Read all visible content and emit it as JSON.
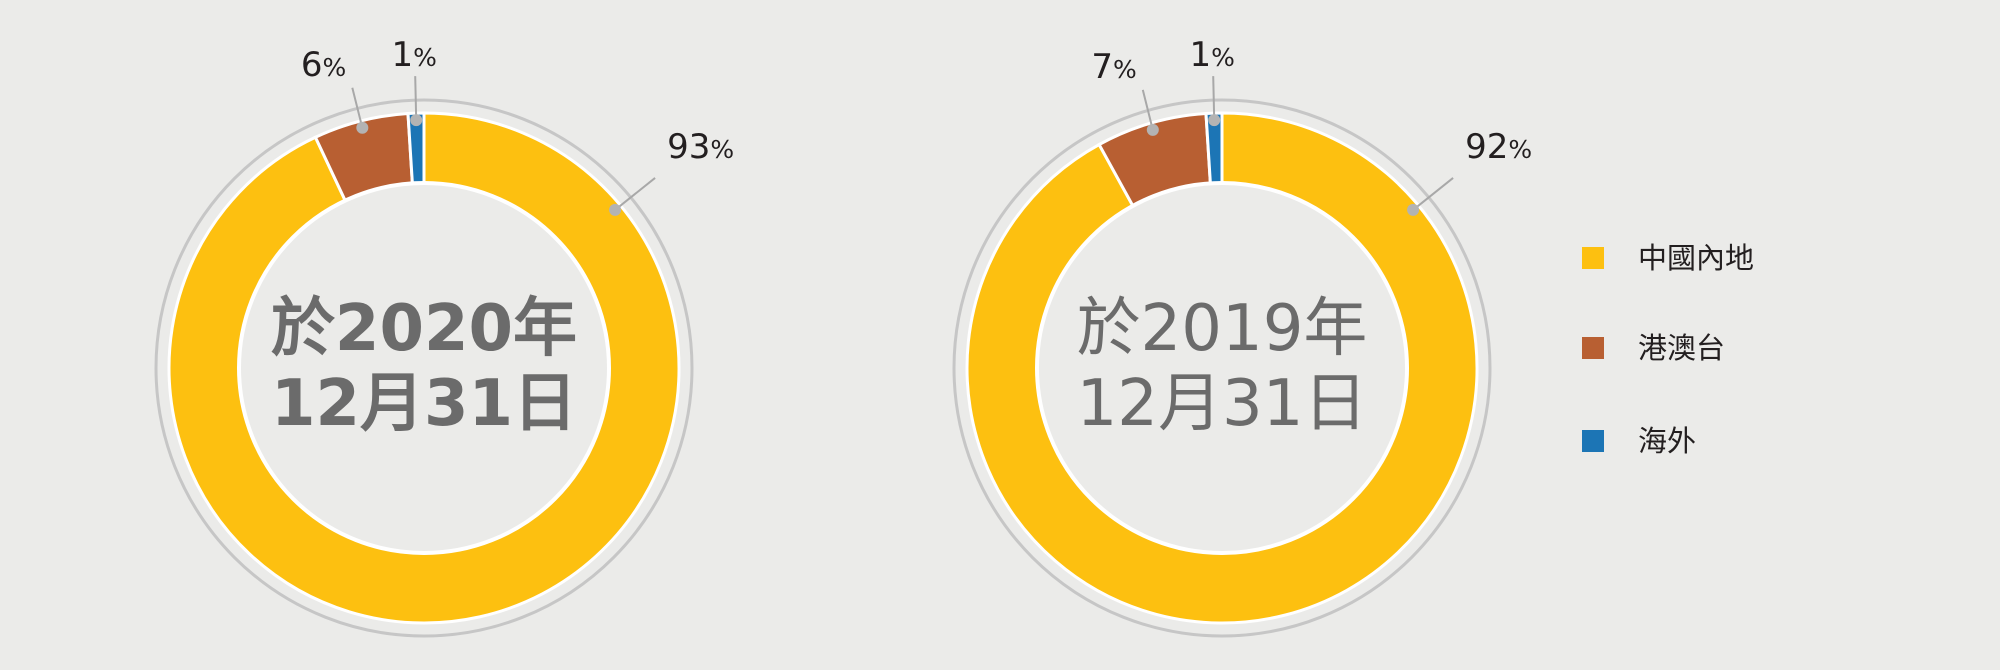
{
  "chart_data": [
    {
      "type": "pie",
      "variant": "donut",
      "center_label": [
        "於2020年",
        "12月31日"
      ],
      "categories": [
        "中國內地",
        "港澳台",
        "海外"
      ],
      "values": [
        93,
        6,
        1
      ],
      "value_labels": [
        "93",
        "6",
        "1"
      ],
      "unit": "%"
    },
    {
      "type": "pie",
      "variant": "donut",
      "center_label": [
        "於2019年",
        "12月31日"
      ],
      "categories": [
        "中國內地",
        "港澳台",
        "海外"
      ],
      "values": [
        92,
        7,
        1
      ],
      "value_labels": [
        "92",
        "7",
        "1"
      ],
      "unit": "%"
    }
  ],
  "legend": {
    "placement": "right",
    "items": [
      {
        "label": "中國內地",
        "color": "#fdc010"
      },
      {
        "label": "港澳台",
        "color": "#b85f32"
      },
      {
        "label": "海外",
        "color": "#1c75b5"
      }
    ]
  },
  "colors": {
    "background": "#ebebe9",
    "outer_ring": "#c6c6c6",
    "leader_line": "#a8a8a8",
    "center_text": "#6b6b6b"
  }
}
